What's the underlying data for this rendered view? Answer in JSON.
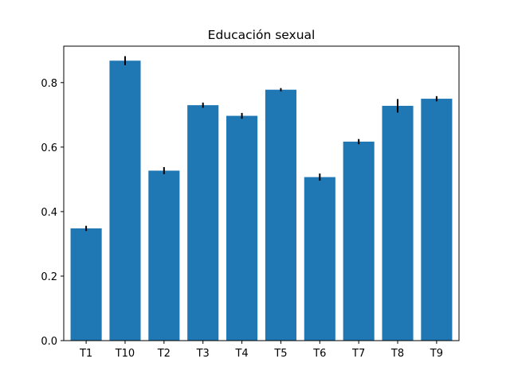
{
  "chart_data": {
    "type": "bar",
    "title": "Educación sexual",
    "xlabel": "",
    "ylabel": "",
    "categories": [
      "T1",
      "T10",
      "T2",
      "T3",
      "T4",
      "T5",
      "T6",
      "T7",
      "T8",
      "T9"
    ],
    "values": [
      0.348,
      0.868,
      0.527,
      0.73,
      0.697,
      0.778,
      0.507,
      0.617,
      0.728,
      0.75
    ],
    "errors": [
      0.008,
      0.014,
      0.011,
      0.008,
      0.009,
      0.005,
      0.011,
      0.008,
      0.021,
      0.008
    ],
    "ylim": [
      0,
      0.913
    ],
    "yticks": [
      0.0,
      0.2,
      0.4,
      0.6,
      0.8
    ],
    "ytick_labels": [
      "0.0",
      "0.2",
      "0.4",
      "0.6",
      "0.8"
    ],
    "grid": false,
    "legend": "none",
    "colors": {
      "bar": "#1f77b4",
      "error": "#000000",
      "axis": "#000000",
      "background": "#ffffff"
    }
  }
}
